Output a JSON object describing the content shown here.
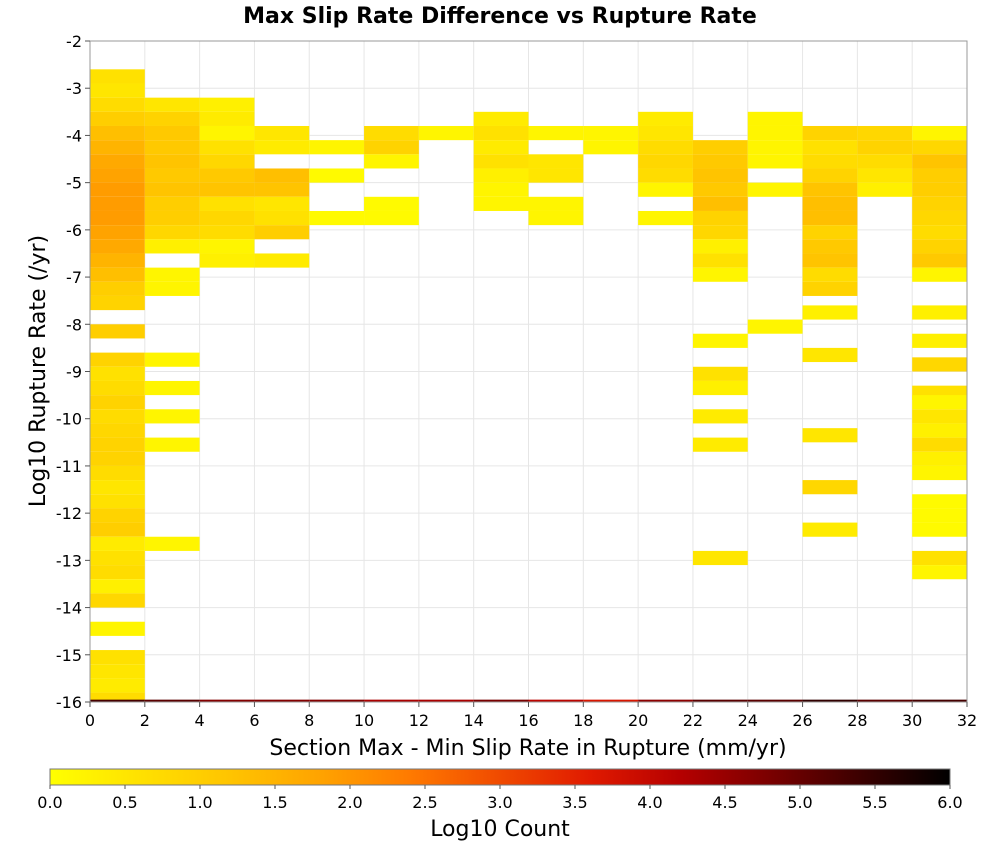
{
  "chart_data": {
    "type": "heatmap",
    "title": "Max Slip Rate Difference vs Rupture Rate",
    "xlabel": "Section Max - Min Slip Rate in Rupture (mm/yr)",
    "ylabel": "Log10 Rupture Rate (/yr)",
    "xlim": [
      0,
      32
    ],
    "ylim": [
      -16,
      -2
    ],
    "x_ticks": [
      "0",
      "2",
      "4",
      "6",
      "8",
      "10",
      "12",
      "14",
      "16",
      "18",
      "20",
      "22",
      "24",
      "26",
      "28",
      "30",
      "32"
    ],
    "y_ticks": [
      "-2",
      "-3",
      "-4",
      "-5",
      "-6",
      "-7",
      "-8",
      "-9",
      "-10",
      "-11",
      "-12",
      "-13",
      "-14",
      "-15",
      "-16"
    ],
    "grid": true,
    "x_bin_width": 2,
    "y_bin_height": 0.3,
    "colorbar": {
      "label": "Log10 Count",
      "min": 0,
      "max": 6,
      "ticks": [
        "0.0",
        "0.5",
        "1.0",
        "1.5",
        "2.0",
        "2.5",
        "3.0",
        "3.5",
        "4.0",
        "4.5",
        "5.0",
        "5.5",
        "6.0"
      ],
      "colormap": [
        "#ffff00",
        "#ffe100",
        "#ffc400",
        "#ffa300",
        "#ff7a00",
        "#f04a00",
        "#e01a00",
        "#b50000",
        "#7a0000",
        "#3c0000",
        "#000000"
      ]
    },
    "columns": [
      {
        "x_start": 0,
        "cells": [
          [
            -2.75,
            0.6
          ],
          [
            -3.05,
            0.5
          ],
          [
            -3.35,
            0.7
          ],
          [
            -3.65,
            1.0
          ],
          [
            -3.95,
            1.3
          ],
          [
            -4.25,
            1.5
          ],
          [
            -4.55,
            1.7
          ],
          [
            -4.85,
            1.8
          ],
          [
            -5.15,
            1.9
          ],
          [
            -5.45,
            1.9
          ],
          [
            -5.75,
            1.9
          ],
          [
            -6.05,
            1.8
          ],
          [
            -6.35,
            1.7
          ],
          [
            -6.65,
            1.5
          ],
          [
            -6.95,
            1.3
          ],
          [
            -7.25,
            1.0
          ],
          [
            -7.55,
            0.9
          ],
          [
            -8.15,
            1.0
          ],
          [
            -8.75,
            0.9
          ],
          [
            -9.05,
            0.6
          ],
          [
            -9.35,
            0.7
          ],
          [
            -9.65,
            0.9
          ],
          [
            -9.95,
            0.7
          ],
          [
            -10.25,
            0.8
          ],
          [
            -10.55,
            0.9
          ],
          [
            -10.85,
            0.9
          ],
          [
            -11.15,
            0.7
          ],
          [
            -11.45,
            0.5
          ],
          [
            -11.75,
            0.6
          ],
          [
            -12.05,
            0.9
          ],
          [
            -12.35,
            1.0
          ],
          [
            -12.65,
            0.4
          ],
          [
            -12.95,
            0.6
          ],
          [
            -13.25,
            0.7
          ],
          [
            -13.55,
            0.3
          ],
          [
            -13.85,
            0.8
          ],
          [
            -14.45,
            0.2
          ],
          [
            -15.05,
            0.6
          ],
          [
            -15.35,
            0.5
          ],
          [
            -15.65,
            0.4
          ],
          [
            -15.95,
            0.7
          ],
          [
            -16.1,
            5.3
          ]
        ]
      },
      {
        "x_start": 2,
        "cells": [
          [
            -3.35,
            0.5
          ],
          [
            -3.65,
            0.9
          ],
          [
            -3.95,
            1.1
          ],
          [
            -4.25,
            1.1
          ],
          [
            -4.55,
            1.2
          ],
          [
            -4.85,
            1.1
          ],
          [
            -5.15,
            1.2
          ],
          [
            -5.45,
            1.0
          ],
          [
            -5.75,
            1.0
          ],
          [
            -6.05,
            0.8
          ],
          [
            -6.35,
            0.3
          ],
          [
            -6.95,
            0.2
          ],
          [
            -7.25,
            0.2
          ],
          [
            -8.75,
            0.2
          ],
          [
            -9.35,
            0.2
          ],
          [
            -9.95,
            0.2
          ],
          [
            -10.55,
            0.2
          ],
          [
            -12.65,
            0.2
          ],
          [
            -16.1,
            5.1
          ]
        ]
      },
      {
        "x_start": 4,
        "cells": [
          [
            -3.35,
            0.3
          ],
          [
            -3.65,
            0.4
          ],
          [
            -3.95,
            0.2
          ],
          [
            -4.25,
            0.6
          ],
          [
            -4.55,
            0.8
          ],
          [
            -4.85,
            1.1
          ],
          [
            -5.15,
            1.2
          ],
          [
            -5.45,
            0.6
          ],
          [
            -5.75,
            0.8
          ],
          [
            -6.05,
            0.7
          ],
          [
            -6.35,
            0.2
          ],
          [
            -6.65,
            0.3
          ],
          [
            -16.1,
            4.7
          ]
        ]
      },
      {
        "x_start": 6,
        "cells": [
          [
            -3.95,
            0.5
          ],
          [
            -4.25,
            0.4
          ],
          [
            -4.85,
            1.3
          ],
          [
            -5.15,
            1.2
          ],
          [
            -5.45,
            0.5
          ],
          [
            -5.75,
            0.6
          ],
          [
            -6.05,
            1.0
          ],
          [
            -6.65,
            0.4
          ],
          [
            -16.1,
            4.7
          ]
        ]
      },
      {
        "x_start": 8,
        "cells": [
          [
            -4.25,
            0.2
          ],
          [
            -4.85,
            0.1
          ],
          [
            -5.75,
            0.1
          ],
          [
            -16.1,
            4.7
          ]
        ]
      },
      {
        "x_start": 10,
        "cells": [
          [
            -3.95,
            0.7
          ],
          [
            -4.25,
            0.9
          ],
          [
            -4.55,
            0.2
          ],
          [
            -5.45,
            0.1
          ],
          [
            -5.75,
            0.1
          ],
          [
            -16.1,
            4.3
          ]
        ]
      },
      {
        "x_start": 12,
        "cells": [
          [
            -3.95,
            0.2
          ],
          [
            -16.1,
            4.3
          ]
        ]
      },
      {
        "x_start": 14,
        "cells": [
          [
            -3.65,
            0.4
          ],
          [
            -3.95,
            0.6
          ],
          [
            -4.25,
            0.4
          ],
          [
            -4.55,
            0.6
          ],
          [
            -4.85,
            0.3
          ],
          [
            -5.15,
            0.2
          ],
          [
            -5.45,
            0.2
          ],
          [
            -16.1,
            4.8
          ]
        ]
      },
      {
        "x_start": 16,
        "cells": [
          [
            -3.95,
            0.2
          ],
          [
            -4.55,
            0.5
          ],
          [
            -4.85,
            0.5
          ],
          [
            -5.45,
            0.2
          ],
          [
            -5.75,
            0.2
          ],
          [
            -16.1,
            4.1
          ]
        ]
      },
      {
        "x_start": 18,
        "cells": [
          [
            -3.95,
            0.2
          ],
          [
            -4.25,
            0.2
          ],
          [
            -16.1,
            3.7
          ]
        ]
      },
      {
        "x_start": 20,
        "cells": [
          [
            -3.65,
            0.4
          ],
          [
            -3.95,
            0.5
          ],
          [
            -4.25,
            0.7
          ],
          [
            -4.55,
            0.8
          ],
          [
            -4.85,
            0.7
          ],
          [
            -5.15,
            0.2
          ],
          [
            -5.75,
            0.2
          ],
          [
            -16.1,
            4.6
          ]
        ]
      },
      {
        "x_start": 22,
        "cells": [
          [
            -4.25,
            1.0
          ],
          [
            -4.55,
            1.1
          ],
          [
            -4.85,
            1.2
          ],
          [
            -5.15,
            1.1
          ],
          [
            -5.45,
            1.3
          ],
          [
            -5.75,
            0.9
          ],
          [
            -6.05,
            0.8
          ],
          [
            -6.35,
            0.3
          ],
          [
            -6.65,
            0.6
          ],
          [
            -6.95,
            0.2
          ],
          [
            -8.35,
            0.2
          ],
          [
            -9.05,
            0.6
          ],
          [
            -9.35,
            0.3
          ],
          [
            -9.95,
            0.4
          ],
          [
            -10.55,
            0.4
          ],
          [
            -12.95,
            0.5
          ],
          [
            -16.1,
            5.1
          ]
        ]
      },
      {
        "x_start": 24,
        "cells": [
          [
            -3.65,
            0.2
          ],
          [
            -3.95,
            0.2
          ],
          [
            -4.25,
            0.2
          ],
          [
            -4.55,
            0.2
          ],
          [
            -5.15,
            0.2
          ],
          [
            -8.05,
            0.2
          ],
          [
            -16.1,
            5.1
          ]
        ]
      },
      {
        "x_start": 26,
        "cells": [
          [
            -3.95,
            0.9
          ],
          [
            -4.25,
            0.6
          ],
          [
            -4.55,
            0.7
          ],
          [
            -4.85,
            0.9
          ],
          [
            -5.15,
            1.2
          ],
          [
            -5.45,
            1.3
          ],
          [
            -5.75,
            1.3
          ],
          [
            -6.05,
            0.9
          ],
          [
            -6.35,
            1.1
          ],
          [
            -6.65,
            1.2
          ],
          [
            -6.95,
            0.7
          ],
          [
            -7.25,
            0.9
          ],
          [
            -7.75,
            0.3
          ],
          [
            -8.65,
            0.5
          ],
          [
            -10.35,
            0.5
          ],
          [
            -11.45,
            0.8
          ],
          [
            -12.35,
            0.4
          ],
          [
            -16.1,
            5.5
          ]
        ]
      },
      {
        "x_start": 28,
        "cells": [
          [
            -3.95,
            0.8
          ],
          [
            -4.25,
            0.9
          ],
          [
            -4.55,
            0.7
          ],
          [
            -4.85,
            0.5
          ],
          [
            -5.15,
            0.3
          ],
          [
            -16.1,
            5.1
          ]
        ]
      },
      {
        "x_start": 30,
        "cells": [
          [
            -3.95,
            0.2
          ],
          [
            -4.25,
            0.8
          ],
          [
            -4.55,
            1.2
          ],
          [
            -4.85,
            1.0
          ],
          [
            -5.15,
            1.0
          ],
          [
            -5.45,
            0.9
          ],
          [
            -5.75,
            0.8
          ],
          [
            -6.05,
            0.7
          ],
          [
            -6.35,
            0.9
          ],
          [
            -6.65,
            1.1
          ],
          [
            -6.95,
            0.2
          ],
          [
            -7.75,
            0.3
          ],
          [
            -8.35,
            0.3
          ],
          [
            -8.85,
            0.8
          ],
          [
            -9.45,
            0.6
          ],
          [
            -9.65,
            0.2
          ],
          [
            -9.95,
            0.5
          ],
          [
            -10.25,
            0.3
          ],
          [
            -10.55,
            0.7
          ],
          [
            -10.85,
            0.3
          ],
          [
            -11.15,
            0.2
          ],
          [
            -11.75,
            0.1
          ],
          [
            -12.05,
            0.1
          ],
          [
            -12.35,
            0.1
          ],
          [
            -12.95,
            0.6
          ],
          [
            -13.25,
            0.2
          ],
          [
            -16.1,
            5.3
          ]
        ]
      }
    ]
  }
}
